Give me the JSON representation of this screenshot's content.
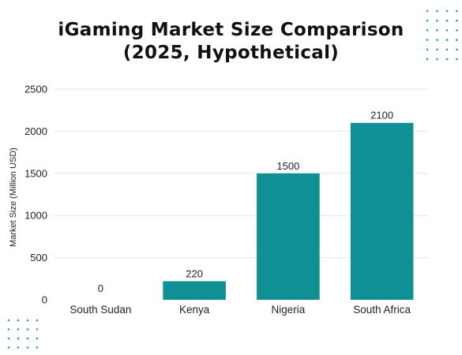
{
  "accent_color": "#0f9094",
  "dot_color": "#2a9d9a",
  "chart_data": {
    "type": "bar",
    "title_line1": "iGaming Market Size Comparison",
    "title_line2": "(2025, Hypothetical)",
    "xlabel": "",
    "ylabel": "Market Size (Million USD)",
    "categories": [
      "South Sudan",
      "Kenya",
      "Nigeria",
      "South Africa"
    ],
    "values": [
      0,
      220,
      1500,
      2100
    ],
    "value_labels": [
      "0",
      "220",
      "1500",
      "2100"
    ],
    "ylim": [
      0,
      2500
    ],
    "yticks": [
      0,
      500,
      1000,
      1500,
      2000,
      2500
    ],
    "ytick_labels": [
      "0",
      "500",
      "1000",
      "1500",
      "2000",
      "2500"
    ],
    "grid": true,
    "legend": "none"
  }
}
